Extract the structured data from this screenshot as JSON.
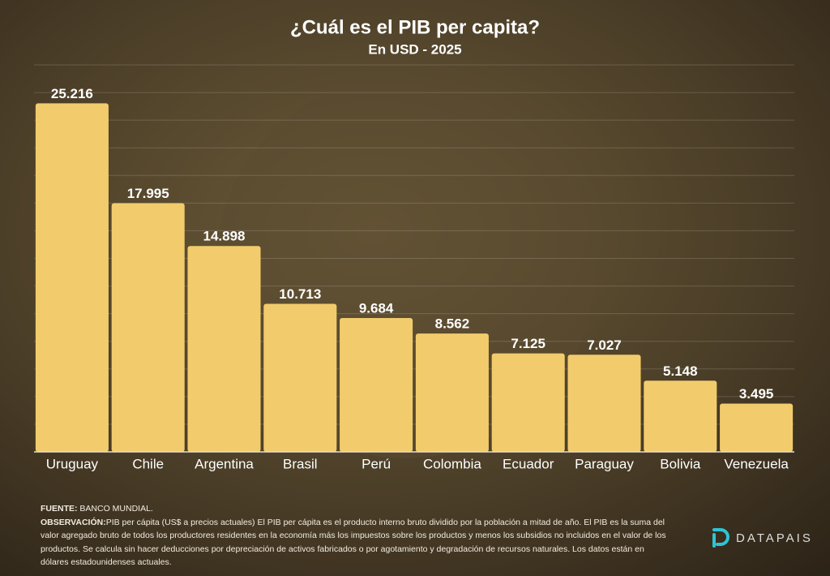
{
  "chart_data": {
    "type": "bar",
    "title": "¿Cuál es el  PIB per capita?",
    "subtitle": "En USD - 2025",
    "categories": [
      "Uruguay",
      "Chile",
      "Argentina",
      "Brasil",
      "Perú",
      "Colombia",
      "Ecuador",
      "Paraguay",
      "Bolivia",
      "Venezuela"
    ],
    "values": [
      25216,
      17995,
      14898,
      10713,
      9684,
      8562,
      7125,
      7027,
      5148,
      3495
    ],
    "value_labels": [
      "25.216",
      "17.995",
      "14.898",
      "10.713",
      "9.684",
      "8.562",
      "7.125",
      "7.027",
      "5.148",
      "3.495"
    ],
    "color": "#f2cc6c",
    "ylim": [
      0,
      28000
    ],
    "yticks": [
      0,
      2000,
      4000,
      6000,
      8000,
      10000,
      12000,
      14000,
      16000,
      18000,
      20000,
      22000,
      24000,
      26000,
      28000
    ],
    "grid": true
  },
  "footer": {
    "source_label": "FUENTE:",
    "source": " BANCO MUNDIAL.",
    "note_label": "OBSERVACIÓN:",
    "note": "PIB per cápita (US$  a precios actuales) El PIB per cápita   es el producto interno bruto dividido por la población a mitad de año. El PIB   es la suma del valor agregado bruto de todos los productores residentes en la   economía más los impuestos sobre los productos y menos los subsidios no incluidos en el valor de los productos. Se calcula sin hacer deducciones por   depreciación de activos fabricados o por agotamiento y degradación de recursos naturales. Los datos están en dólares estadounidenses actuales.",
    "brand": "DATAPAIS"
  }
}
